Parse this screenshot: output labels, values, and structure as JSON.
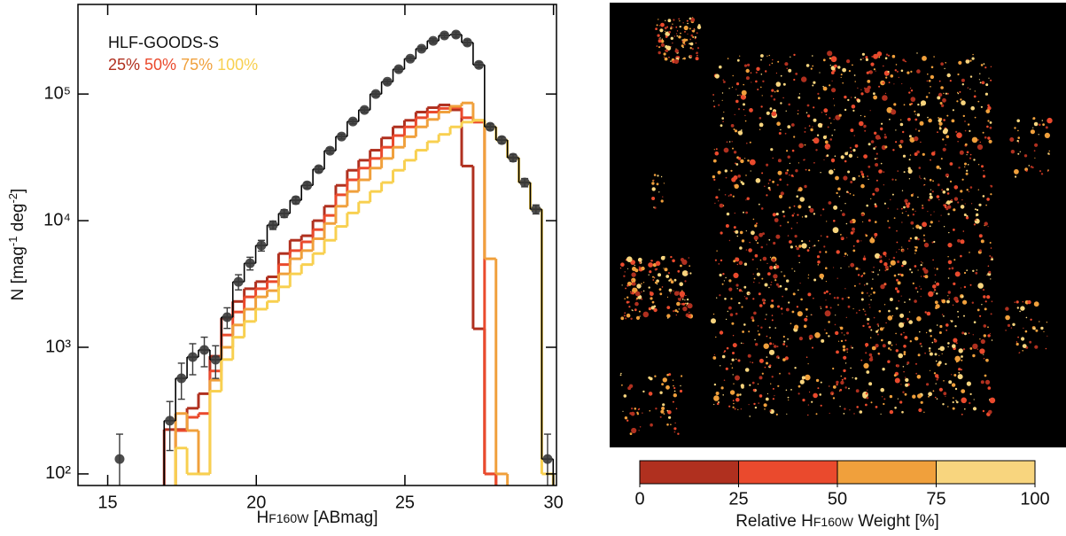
{
  "chart_data": {
    "type": "histogram",
    "xlabel": [
      "H",
      "F160W",
      " [ABmag]"
    ],
    "ylabel": [
      "N [mag",
      "-1",
      " deg",
      "-2",
      "]"
    ],
    "xlim": [
      14,
      30.1
    ],
    "ylim": [
      81,
      510000
    ],
    "log_y": true,
    "xticks": [
      15,
      20,
      25,
      30
    ],
    "yticks": [
      {
        "value": 100,
        "label": "10²"
      },
      {
        "value": 1000,
        "label": "10³"
      },
      {
        "value": 10000,
        "label": "10⁴"
      },
      {
        "value": 100000,
        "label": "10⁵"
      }
    ],
    "bins": [
      16.9,
      17.285,
      17.67,
      18.055,
      18.44,
      18.825,
      19.21,
      19.595,
      19.98,
      20.365,
      20.75,
      21.135,
      21.52,
      21.905,
      22.29,
      22.675,
      23.06,
      23.445,
      23.83,
      24.215,
      24.6,
      24.985,
      25.37,
      25.755,
      26.14,
      26.525,
      26.91,
      27.295,
      27.68,
      28.065,
      28.45,
      28.835,
      29.22,
      29.605,
      29.99
    ],
    "series": [
      {
        "name": "25%",
        "color": "#b0301f",
        "values": [
          224,
          224,
          330,
          430,
          850,
          1700,
          2300,
          2900,
          3300,
          3600,
          5500,
          7000,
          7600,
          10000,
          13000,
          19000,
          25000,
          30000,
          36000,
          45000,
          55000,
          62000,
          72000,
          78000,
          82000,
          75000,
          27000,
          1400,
          100,
          null,
          null,
          null,
          null,
          null
        ]
      },
      {
        "name": "50%",
        "color": "#ea4a2d",
        "values": [
          null,
          220,
          280,
          300,
          650,
          1250,
          1900,
          2500,
          2900,
          3300,
          4500,
          5800,
          6800,
          8500,
          11000,
          16000,
          21000,
          26000,
          31000,
          38000,
          47000,
          55000,
          65000,
          72000,
          77000,
          78000,
          65000,
          60000,
          100,
          null,
          null,
          null,
          null,
          null
        ]
      },
      {
        "name": "75%",
        "color": "#f0a03c",
        "values": [
          null,
          300,
          220,
          100,
          550,
          1000,
          1500,
          2000,
          2500,
          2800,
          3800,
          5000,
          5800,
          7200,
          9500,
          13000,
          17000,
          21000,
          26000,
          31000,
          38000,
          46000,
          55000,
          63000,
          72000,
          80000,
          85000,
          62000,
          5000,
          100,
          null,
          null,
          null,
          null
        ]
      },
      {
        "name": "100%",
        "color": "#f8d050",
        "values": [
          null,
          160,
          100,
          100,
          450,
          800,
          1200,
          1600,
          2000,
          2300,
          3000,
          3800,
          4500,
          5500,
          7000,
          9000,
          11500,
          14000,
          17000,
          20000,
          25000,
          30000,
          36000,
          42000,
          48000,
          55000,
          60000,
          62000,
          55100,
          43300,
          31400,
          20000,
          12300,
          100
        ]
      },
      {
        "name": "HLF-GOODS-S",
        "color": "#000000",
        "values": [
          263,
          569,
          837,
          952,
          798,
          1730,
          3290,
          4610,
          6370,
          9220,
          11400,
          14500,
          19000,
          25500,
          35700,
          46200,
          60700,
          74800,
          100000,
          125000,
          157000,
          190000,
          228000,
          263000,
          290000,
          295000,
          255000,
          170000,
          55100,
          43300,
          31400,
          20000,
          12300,
          131
        ]
      }
    ],
    "points": {
      "color": "#3a3a3a",
      "x": [
        15.4,
        17.09,
        17.48,
        17.86,
        18.25,
        18.63,
        19.02,
        19.4,
        19.79,
        20.17,
        20.56,
        20.94,
        21.33,
        21.71,
        22.1,
        22.48,
        22.87,
        23.25,
        23.64,
        24.02,
        24.41,
        24.79,
        25.18,
        25.56,
        25.95,
        26.33,
        26.72,
        27.1,
        27.49,
        27.87,
        28.26,
        28.64,
        29.03,
        29.41,
        29.8
      ],
      "values": [
        131,
        263,
        569,
        837,
        952,
        798,
        1730,
        3290,
        4610,
        6370,
        9220,
        11400,
        14500,
        19000,
        25500,
        35700,
        46200,
        60700,
        74800,
        100000,
        125000,
        157000,
        190000,
        228000,
        263000,
        290000,
        295000,
        255000,
        170000,
        55100,
        43300,
        31400,
        20000,
        12300,
        131
      ],
      "errors": [
        75,
        110,
        180,
        230,
        250,
        230,
        320,
        450,
        530,
        620,
        700,
        800,
        900,
        1000,
        1300,
        1700,
        2000,
        2500,
        3000,
        4000,
        5000,
        6000,
        7000,
        8000,
        10000,
        12000,
        14000,
        12000,
        8000,
        3000,
        2500,
        2000,
        1500,
        1000,
        75
      ]
    }
  },
  "colorbar": {
    "ticks": [
      0,
      25,
      50,
      75,
      100
    ],
    "colors": [
      "#b0301f",
      "#ea4a2d",
      "#f0a03c",
      "#f8d57e"
    ],
    "label": [
      "Relative H",
      "F160W",
      " Weight [%]"
    ]
  }
}
